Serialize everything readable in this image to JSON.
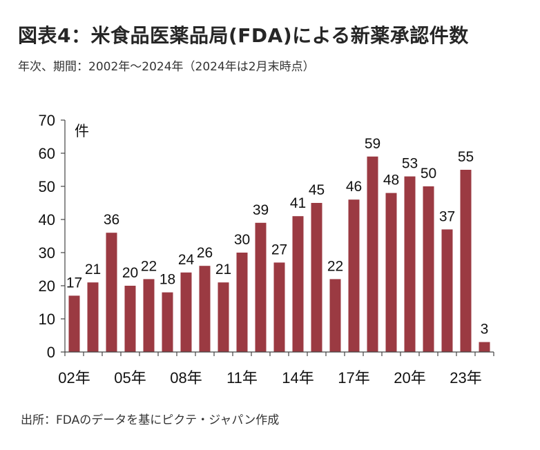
{
  "title": "図表4：米食品医薬品局(FDA)による新薬承認件数",
  "subtitle": "年次、期間：2002年～2024年（2024年は2月末時点）",
  "source": "出所：FDAのデータを基にピクテ・ジャパン作成",
  "colors": {
    "bar": "#9b3a42",
    "axis": "#444444"
  },
  "chart_data": {
    "type": "bar",
    "unit_label": "件",
    "categories": [
      "2002",
      "2003",
      "2004",
      "2005",
      "2006",
      "2007",
      "2008",
      "2009",
      "2010",
      "2011",
      "2012",
      "2013",
      "2014",
      "2015",
      "2016",
      "2017",
      "2018",
      "2019",
      "2020",
      "2021",
      "2022",
      "2023",
      "2024"
    ],
    "values": [
      17,
      21,
      36,
      20,
      22,
      18,
      24,
      26,
      21,
      30,
      39,
      27,
      41,
      45,
      22,
      46,
      59,
      48,
      53,
      50,
      37,
      55,
      3
    ],
    "x_tick_labels": [
      "02年",
      "05年",
      "08年",
      "11年",
      "14年",
      "17年",
      "20年",
      "23年"
    ],
    "x_tick_indices": [
      0,
      3,
      6,
      9,
      12,
      15,
      18,
      21
    ],
    "y_ticks": [
      0,
      10,
      20,
      30,
      40,
      50,
      60,
      70
    ],
    "ylim": [
      0,
      70
    ],
    "xlabel": "",
    "ylabel": "件"
  }
}
